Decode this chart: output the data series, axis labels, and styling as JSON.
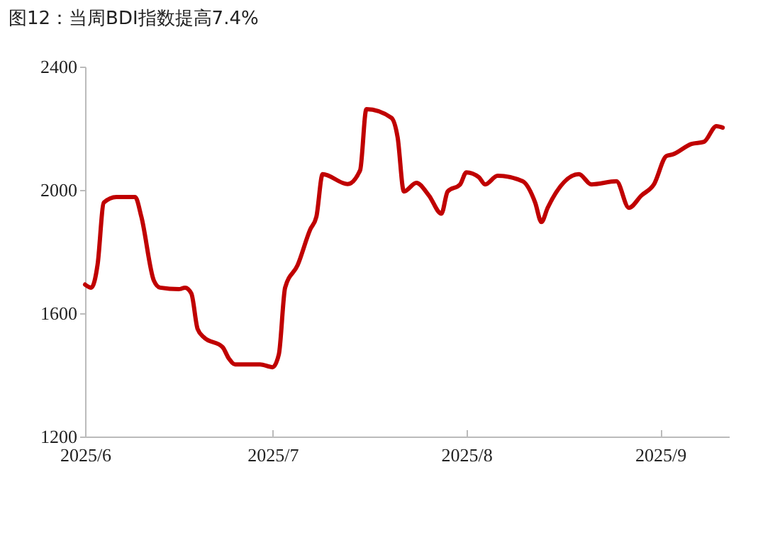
{
  "chart_data": {
    "type": "line",
    "title": "图12：当周BDI指数提高7.4%",
    "x": [
      "2025-06-01",
      "2025-06-02",
      "2025-06-03",
      "2025-06-04",
      "2025-06-06",
      "2025-06-09",
      "2025-06-10",
      "2025-06-12",
      "2025-06-13",
      "2025-06-16",
      "2025-06-17",
      "2025-06-18",
      "2025-06-19",
      "2025-06-20",
      "2025-06-23",
      "2025-06-24",
      "2025-06-25",
      "2025-06-29",
      "2025-07-01",
      "2025-07-02",
      "2025-07-03",
      "2025-07-05",
      "2025-07-07",
      "2025-07-08",
      "2025-07-09",
      "2025-07-13",
      "2025-07-15",
      "2025-07-16",
      "2025-07-20",
      "2025-07-21",
      "2025-07-22",
      "2025-07-24",
      "2025-07-26",
      "2025-07-28",
      "2025-07-29",
      "2025-07-31",
      "2025-08-01",
      "2025-08-03",
      "2025-08-04",
      "2025-08-06",
      "2025-08-10",
      "2025-08-12",
      "2025-08-13",
      "2025-08-14",
      "2025-08-19",
      "2025-08-21",
      "2025-08-25",
      "2025-08-27",
      "2025-08-29",
      "2025-08-31",
      "2025-09-02",
      "2025-09-03",
      "2025-09-06",
      "2025-09-08",
      "2025-09-10",
      "2025-09-11"
    ],
    "series": [
      {
        "color": "#c00000",
        "values": [
          1693,
          1683,
          1758,
          1959,
          1977,
          1977,
          1913,
          1706,
          1683,
          1678,
          1683,
          1664,
          1549,
          1522,
          1490,
          1453,
          1434,
          1434,
          1425,
          1467,
          1683,
          1756,
          1871,
          1913,
          2051,
          2019,
          2064,
          2262,
          2234,
          2170,
          1995,
          2023,
          1982,
          1923,
          1995,
          2018,
          2057,
          2041,
          2018,
          2046,
          2028,
          1959,
          1896,
          1942,
          2051,
          2018,
          2028,
          1942,
          1982,
          2018,
          2110,
          2115,
          2149,
          2156,
          2207,
          2202
        ]
      }
    ],
    "xlim": [
      "2025-06-01",
      "2025-09-12"
    ],
    "xticks": [
      {
        "value": "2025-06-01",
        "label": "2025/6"
      },
      {
        "value": "2025-07-01",
        "label": "2025/7"
      },
      {
        "value": "2025-08-01",
        "label": "2025/8"
      },
      {
        "value": "2025-09-01",
        "label": "2025/9"
      }
    ],
    "ylim": [
      1200,
      2400
    ],
    "yticks": [
      1200,
      1600,
      2000,
      2400
    ],
    "grid": false,
    "marker": "none",
    "line_style": "solid"
  }
}
